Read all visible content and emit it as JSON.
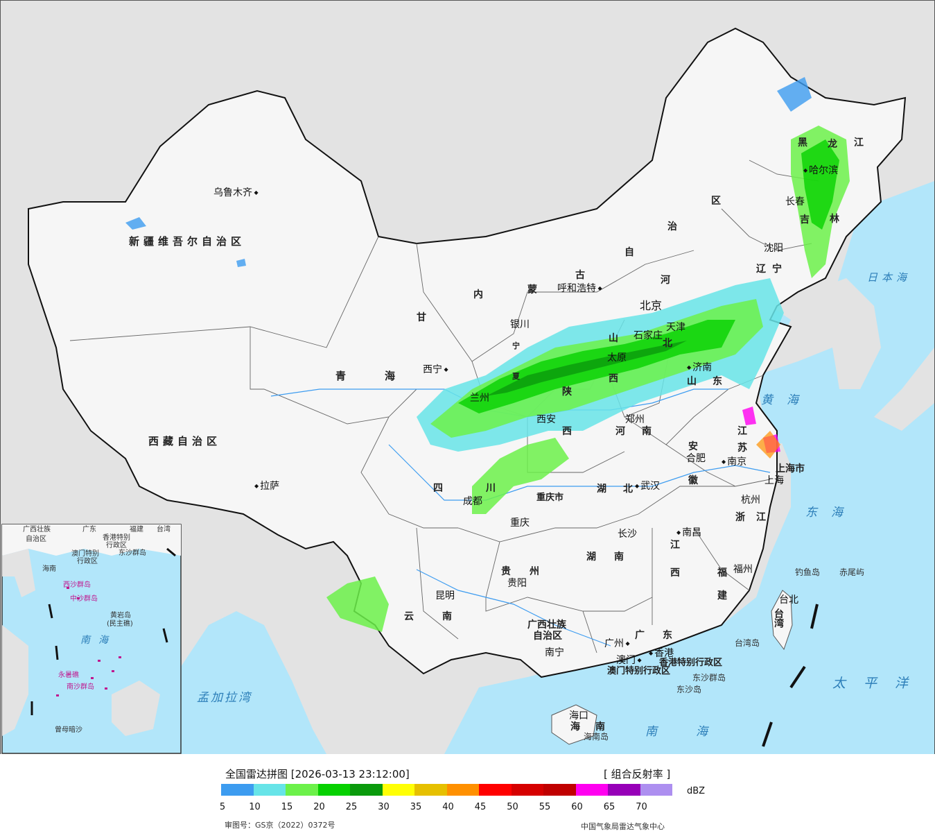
{
  "header": {
    "title": "全国雷达拼图 [2026-03-13 23:12:00]",
    "product": "[ 组合反射率 ]"
  },
  "legend": {
    "unit": "dBZ",
    "ticks": [
      "5",
      "10",
      "15",
      "20",
      "25",
      "30",
      "35",
      "40",
      "45",
      "50",
      "55",
      "60",
      "65",
      "70"
    ],
    "colors": [
      "#3d9cf0",
      "#67e4e8",
      "#6cf14a",
      "#06d100",
      "#0a9a0c",
      "#ffff05",
      "#e6c000",
      "#ff9000",
      "#ff0000",
      "#d60000",
      "#c00000",
      "#ff00f0",
      "#9700b8",
      "#ad8ff0"
    ]
  },
  "footer": {
    "review_no": "审图号：GS京（2022）0372号",
    "source": "中国气象局雷达气象中心"
  },
  "colors": {
    "land_china": "#f6f6f6",
    "land_other": "#e3e3e3",
    "sea": "#b2e6fa",
    "border": "#111111"
  },
  "map": {
    "cities": [
      "乌鲁木齐",
      "呼和浩特",
      "北京",
      "天津",
      "石家庄",
      "太原",
      "济南",
      "银川",
      "西宁",
      "兰州",
      "西安",
      "郑州",
      "合肥",
      "南京",
      "上海",
      "杭州",
      "武汉",
      "成都",
      "重庆",
      "长沙",
      "南昌",
      "福州",
      "贵阳",
      "昆明",
      "南宁",
      "广州",
      "澳门",
      "香港",
      "海口",
      "拉萨",
      "哈尔滨",
      "长春",
      "沈阳",
      "台北"
    ],
    "provinces": [
      "新疆维吾尔自治区",
      "西藏自治区",
      "青海",
      "甘",
      "内",
      "蒙",
      "古",
      "自",
      "治",
      "区",
      "黑",
      "龙",
      "江",
      "吉",
      "林",
      "辽",
      "宁",
      "河",
      "北",
      "山",
      "东",
      "西",
      "陕",
      "四",
      "川",
      "重庆市",
      "湖",
      "南",
      "江",
      "苏",
      "安",
      "徽",
      "浙",
      "福",
      "建",
      "贵",
      "州",
      "云",
      "广西壮族",
      "自治区",
      "广",
      "海",
      "宁",
      "夏",
      "台湾",
      "上海市",
      "香港特别行政区",
      "澳门特别行政区"
    ],
    "seas": [
      "日本海",
      "黄海",
      "东海",
      "南海",
      "太平洋",
      "孟加拉湾"
    ],
    "islands": [
      "钓鱼岛",
      "赤尾屿",
      "台湾岛",
      "东沙群岛",
      "东沙岛",
      "海南岛"
    ],
    "inset_labels": [
      "广西壮族",
      "自治区",
      "广东",
      "福建",
      "台湾",
      "香港特别",
      "行政区",
      "澳门特别",
      "行政区",
      "东沙群岛",
      "海南",
      "西沙群岛",
      "中沙群岛",
      "黄岩岛",
      "(民主礁)",
      "南海",
      "南沙群岛",
      "永暑礁",
      "曾母暗沙"
    ]
  }
}
